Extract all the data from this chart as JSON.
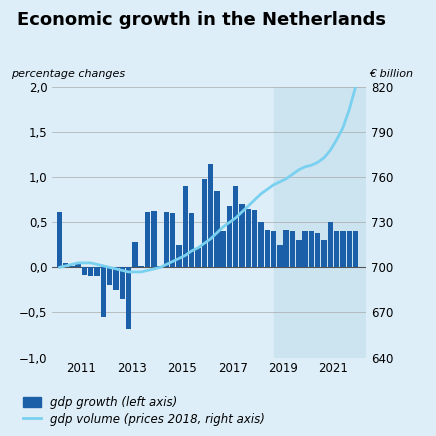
{
  "title": "Economic growth in the Netherlands",
  "ylabel_left": "percentage changes",
  "ylabel_right": "€ billion",
  "background_color": "#deeef8",
  "plot_bg_color": "#deeef8",
  "shade_color": "#cce3f0",
  "bar_color": "#1b5fa8",
  "line_color": "#7ad0ef",
  "ylim_left": [
    -1.0,
    2.0
  ],
  "ylim_right": [
    640,
    820
  ],
  "yticks_left": [
    -1.0,
    -0.5,
    0.0,
    0.5,
    1.0,
    1.5,
    2.0
  ],
  "ytick_labels_left": [
    "−1,0",
    "−0,5",
    "0,0",
    "0,5",
    "1,0",
    "1,5",
    "2,0"
  ],
  "yticks_right": [
    640,
    670,
    700,
    730,
    760,
    790,
    820
  ],
  "ytick_labels_right": [
    "640",
    "670",
    "700",
    "730",
    "760",
    "790",
    "820"
  ],
  "shade_start": 2018.625,
  "shade_end": 2022.3,
  "xlim": [
    2009.85,
    2022.3
  ],
  "xticks": [
    2011,
    2013,
    2015,
    2017,
    2019,
    2021
  ],
  "bar_x": [
    2010.125,
    2010.375,
    2010.625,
    2010.875,
    2011.125,
    2011.375,
    2011.625,
    2011.875,
    2012.125,
    2012.375,
    2012.625,
    2012.875,
    2013.125,
    2013.375,
    2013.625,
    2013.875,
    2014.125,
    2014.375,
    2014.625,
    2014.875,
    2015.125,
    2015.375,
    2015.625,
    2015.875,
    2016.125,
    2016.375,
    2016.625,
    2016.875,
    2017.125,
    2017.375,
    2017.625,
    2017.875,
    2018.125,
    2018.375,
    2018.625,
    2018.875,
    2019.125,
    2019.375,
    2019.625,
    2019.875,
    2020.125,
    2020.375,
    2020.625,
    2020.875,
    2021.125,
    2021.375,
    2021.625,
    2021.875
  ],
  "bar_values": [
    0.62,
    0.05,
    0.02,
    0.05,
    -0.08,
    -0.1,
    -0.1,
    -0.55,
    -0.2,
    -0.25,
    -0.35,
    -0.68,
    0.28,
    0.02,
    0.62,
    0.63,
    0.02,
    0.62,
    0.6,
    0.25,
    0.9,
    0.6,
    0.22,
    0.98,
    1.15,
    0.85,
    0.4,
    0.68,
    0.9,
    0.7,
    0.65,
    0.64,
    0.5,
    0.42,
    0.4,
    0.25,
    0.42,
    0.4,
    0.3,
    0.4,
    0.4,
    0.38,
    0.3,
    0.5,
    0.4,
    0.4,
    0.4,
    0.4
  ],
  "line_x": [
    2010.125,
    2010.375,
    2010.625,
    2010.875,
    2011.125,
    2011.375,
    2011.625,
    2011.875,
    2012.125,
    2012.375,
    2012.625,
    2012.875,
    2013.125,
    2013.375,
    2013.625,
    2013.875,
    2014.125,
    2014.375,
    2014.625,
    2014.875,
    2015.125,
    2015.375,
    2015.625,
    2015.875,
    2016.125,
    2016.375,
    2016.625,
    2016.875,
    2017.125,
    2017.375,
    2017.625,
    2017.875,
    2018.125,
    2018.375,
    2018.625,
    2018.875,
    2019.125,
    2019.375,
    2019.625,
    2019.875,
    2020.125,
    2020.375,
    2020.625,
    2020.875,
    2021.125,
    2021.375,
    2021.625,
    2021.875
  ],
  "line_values": [
    700,
    701,
    702,
    703,
    703,
    703,
    702,
    701,
    700,
    699,
    698,
    697,
    697,
    697,
    698,
    699,
    700,
    702,
    704,
    706,
    708,
    711,
    713,
    716,
    719,
    723,
    727,
    730,
    733,
    737,
    741,
    745,
    749,
    752,
    755,
    757,
    759,
    762,
    765,
    767,
    768,
    770,
    773,
    778,
    785,
    793,
    805,
    820
  ],
  "legend_bar_label": "gdp growth (left axis)",
  "legend_line_label": "gdp volume (prices 2018, right axis)",
  "bar_width": 0.215
}
